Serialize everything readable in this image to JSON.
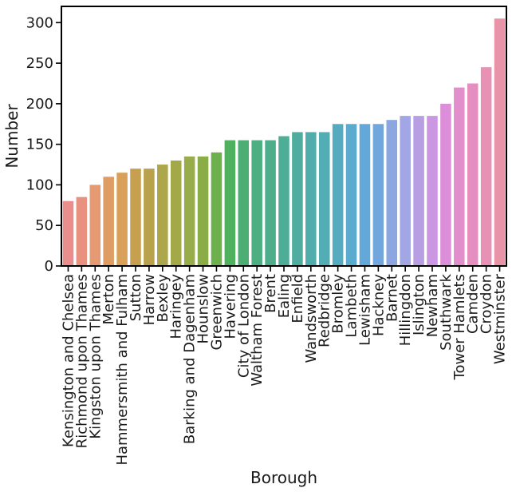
{
  "chart_data": {
    "type": "bar",
    "title": "",
    "xlabel": "Borough",
    "ylabel": "Number",
    "ylim": [
      0,
      320
    ],
    "yticks": [
      0,
      50,
      100,
      150,
      200,
      250,
      300
    ],
    "grid": false,
    "legend": "none",
    "categories": [
      "Kensington and Chelsea",
      "Richmond upon Thames",
      "Kingston upon Thames",
      "Merton",
      "Hammersmith and Fulham",
      "Sutton",
      "Harrow",
      "Bexley",
      "Haringey",
      "Barking and Dagenham",
      "Hounslow",
      "Greenwich",
      "Havering",
      "City of London",
      "Waltham Forest",
      "Brent",
      "Ealing",
      "Enfield",
      "Wandsworth",
      "Redbridge",
      "Bromley",
      "Lambeth",
      "Lewisham",
      "Hackney",
      "Barnet",
      "Hillingdon",
      "Islington",
      "Newham",
      "Southwark",
      "Tower Hamlets",
      "Camden",
      "Croydon",
      "Westminster"
    ],
    "values": [
      80,
      85,
      100,
      110,
      115,
      120,
      120,
      125,
      130,
      135,
      135,
      140,
      155,
      155,
      155,
      155,
      160,
      165,
      165,
      165,
      175,
      175,
      175,
      175,
      180,
      185,
      185,
      185,
      200,
      220,
      225,
      245,
      305
    ],
    "colors": [
      "#e98d8d",
      "#e8917f",
      "#e59a71",
      "#df9c63",
      "#d8a058",
      "#c6a04f",
      "#b8a24b",
      "#aea64b",
      "#a3a849",
      "#98ac49",
      "#8aad48",
      "#6db14e",
      "#4fb05d",
      "#4cae72",
      "#4dae81",
      "#4eae8c",
      "#4ead97",
      "#4fada0",
      "#50adab",
      "#52adb5",
      "#55acc1",
      "#5aabcf",
      "#62a9da",
      "#72a7dd",
      "#8ba6e0",
      "#a3a6e4",
      "#b89fe4",
      "#cb97e3",
      "#dc8fd8",
      "#e28ecc",
      "#e48fc0",
      "#e792b4",
      "#e893a8"
    ]
  }
}
